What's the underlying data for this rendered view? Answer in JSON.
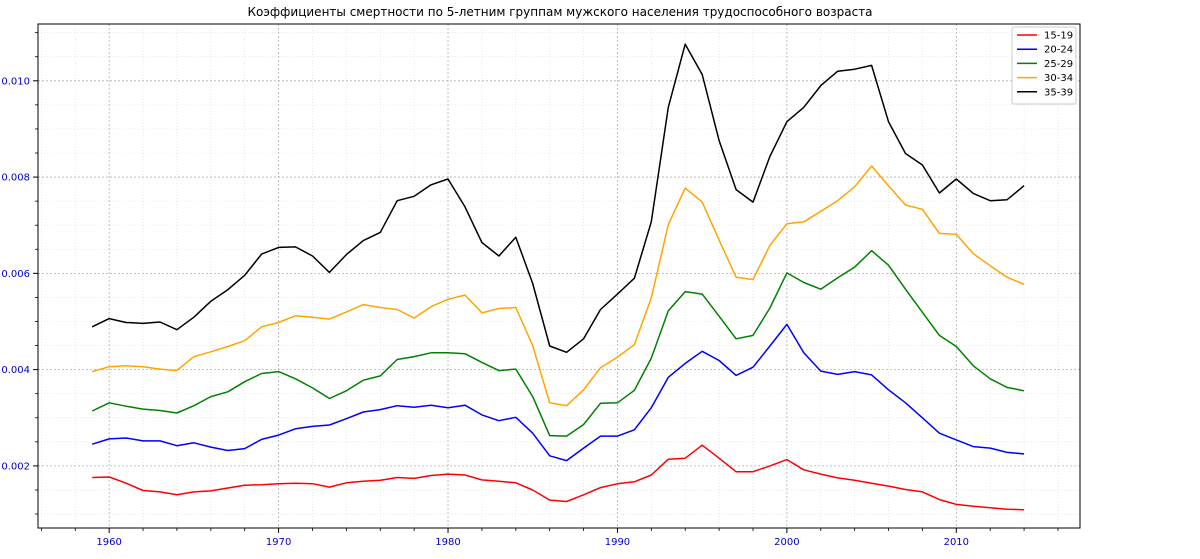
{
  "chart_data": {
    "type": "line",
    "title": "Коэффициенты смертности по 5-летним группам мужского населения трудоспособного возраста",
    "xlabel": "",
    "ylabel": "",
    "x": [
      1959,
      1960,
      1961,
      1962,
      1963,
      1964,
      1965,
      1966,
      1967,
      1968,
      1969,
      1970,
      1971,
      1972,
      1973,
      1974,
      1975,
      1976,
      1977,
      1978,
      1979,
      1980,
      1981,
      1982,
      1983,
      1984,
      1985,
      1986,
      1987,
      1988,
      1989,
      1990,
      1991,
      1992,
      1993,
      1994,
      1995,
      1996,
      1997,
      1998,
      1999,
      2000,
      2001,
      2002,
      2003,
      2004,
      2005,
      2006,
      2007,
      2008,
      2009,
      2010,
      2011,
      2012,
      2013,
      2014
    ],
    "xlim": [
      1955.8,
      2017.3
    ],
    "ylim": [
      0.00071,
      0.01118
    ],
    "xticks": [
      1960,
      1970,
      1980,
      1990,
      2000,
      2010
    ],
    "xtick_labels": [
      "1960",
      "1970",
      "1980",
      "1990",
      "2000",
      "2010"
    ],
    "yticks": [
      0.002,
      0.004,
      0.006,
      0.008,
      0.01
    ],
    "ytick_labels": [
      "0.002",
      "0.004",
      "0.006",
      "0.008",
      "0.010"
    ],
    "grid": true,
    "legend_position": "top-right",
    "series": [
      {
        "name": "15-19",
        "color": "#ff0000",
        "values": [
          0.00176,
          0.00177,
          0.00164,
          0.00149,
          0.00146,
          0.0014,
          0.00146,
          0.00148,
          0.00154,
          0.0016,
          0.00161,
          0.00163,
          0.00164,
          0.00163,
          0.00156,
          0.00165,
          0.00168,
          0.0017,
          0.00176,
          0.00174,
          0.0018,
          0.00183,
          0.00181,
          0.00171,
          0.00168,
          0.00165,
          0.0015,
          0.00129,
          0.00126,
          0.0014,
          0.00155,
          0.00163,
          0.00167,
          0.00181,
          0.00214,
          0.00216,
          0.00243,
          0.00216,
          0.00188,
          0.00188,
          0.002,
          0.00213,
          0.00192,
          0.00183,
          0.00175,
          0.0017,
          0.00164,
          0.00158,
          0.00151,
          0.00146,
          0.0013,
          0.0012,
          0.00116,
          0.00113,
          0.0011,
          0.00109
        ]
      },
      {
        "name": "20-24",
        "color": "#0000ff",
        "values": [
          0.00245,
          0.00256,
          0.00258,
          0.00252,
          0.00252,
          0.00242,
          0.00248,
          0.00239,
          0.00232,
          0.00236,
          0.00255,
          0.00264,
          0.00277,
          0.00282,
          0.00285,
          0.00298,
          0.00312,
          0.00317,
          0.00325,
          0.00322,
          0.00326,
          0.00321,
          0.00326,
          0.00306,
          0.00294,
          0.00301,
          0.00268,
          0.00221,
          0.00211,
          0.00237,
          0.00262,
          0.00262,
          0.00275,
          0.00321,
          0.00384,
          0.00413,
          0.00438,
          0.00419,
          0.00388,
          0.00405,
          0.00449,
          0.00494,
          0.00435,
          0.00397,
          0.0039,
          0.00396,
          0.00389,
          0.00358,
          0.00331,
          0.003,
          0.00268,
          0.00254,
          0.0024,
          0.00237,
          0.00228,
          0.00225
        ]
      },
      {
        "name": "25-29",
        "color": "#008000",
        "values": [
          0.00314,
          0.00331,
          0.00324,
          0.00318,
          0.00315,
          0.0031,
          0.00325,
          0.00344,
          0.00354,
          0.00375,
          0.00392,
          0.00396,
          0.00381,
          0.00362,
          0.0034,
          0.00356,
          0.00378,
          0.00387,
          0.00421,
          0.00427,
          0.00435,
          0.00435,
          0.00433,
          0.00415,
          0.00398,
          0.00401,
          0.00344,
          0.00263,
          0.00262,
          0.00286,
          0.0033,
          0.00331,
          0.00357,
          0.00424,
          0.00522,
          0.00562,
          0.00557,
          0.00511,
          0.00464,
          0.00471,
          0.00528,
          0.00601,
          0.00581,
          0.00567,
          0.00591,
          0.00613,
          0.00647,
          0.00617,
          0.00567,
          0.00519,
          0.00471,
          0.00448,
          0.00408,
          0.00381,
          0.00363,
          0.00356
        ]
      },
      {
        "name": "30-34",
        "color": "#ffa500",
        "values": [
          0.00396,
          0.00406,
          0.00408,
          0.00406,
          0.00401,
          0.00398,
          0.00427,
          0.00437,
          0.00448,
          0.0046,
          0.00489,
          0.00498,
          0.00512,
          0.00509,
          0.00505,
          0.0052,
          0.00535,
          0.00529,
          0.00525,
          0.00507,
          0.00531,
          0.00546,
          0.00555,
          0.00518,
          0.00527,
          0.00529,
          0.0045,
          0.00331,
          0.00325,
          0.00358,
          0.00404,
          0.00426,
          0.00452,
          0.00549,
          0.00701,
          0.00777,
          0.00748,
          0.00669,
          0.00592,
          0.00587,
          0.00658,
          0.00703,
          0.00707,
          0.00729,
          0.00751,
          0.0078,
          0.00823,
          0.00782,
          0.00742,
          0.00733,
          0.00683,
          0.00681,
          0.00641,
          0.00616,
          0.00592,
          0.00577
        ]
      },
      {
        "name": "35-39",
        "color": "#000000",
        "values": [
          0.00489,
          0.00506,
          0.00498,
          0.00496,
          0.00499,
          0.00483,
          0.00509,
          0.00542,
          0.00566,
          0.00596,
          0.0064,
          0.00654,
          0.00655,
          0.00636,
          0.00602,
          0.00639,
          0.00668,
          0.00685,
          0.00751,
          0.0076,
          0.00784,
          0.00796,
          0.00738,
          0.00664,
          0.00636,
          0.00675,
          0.00579,
          0.00449,
          0.00436,
          0.00464,
          0.00525,
          0.00557,
          0.0059,
          0.00707,
          0.00945,
          0.01076,
          0.01013,
          0.00876,
          0.00774,
          0.00748,
          0.00843,
          0.00915,
          0.00945,
          0.0099,
          0.0102,
          0.01024,
          0.01032,
          0.00915,
          0.00849,
          0.00825,
          0.00767,
          0.00796,
          0.00766,
          0.00751,
          0.00753,
          0.00782
        ]
      }
    ]
  }
}
